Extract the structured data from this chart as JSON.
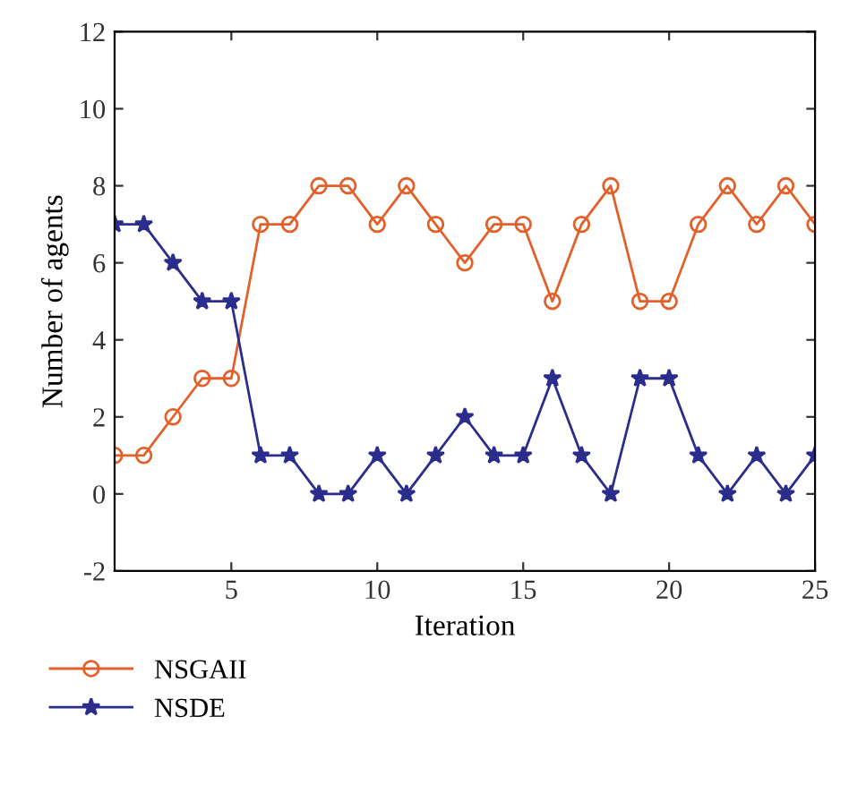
{
  "chart_data": {
    "type": "line",
    "xlabel": "Iteration",
    "ylabel": "Number of agents",
    "x": [
      1,
      2,
      3,
      4,
      5,
      6,
      7,
      8,
      9,
      10,
      11,
      12,
      13,
      14,
      15,
      16,
      17,
      18,
      19,
      20,
      21,
      22,
      23,
      24,
      25
    ],
    "series": [
      {
        "name": "NSGAII",
        "color": "#e2612a",
        "marker": "circle",
        "values": [
          1,
          1,
          2,
          3,
          3,
          7,
          7,
          8,
          8,
          7,
          8,
          7,
          6,
          7,
          7,
          5,
          7,
          8,
          5,
          5,
          7,
          8,
          7,
          8,
          7
        ]
      },
      {
        "name": "NSDE",
        "color": "#2b2d8c",
        "marker": "star",
        "values": [
          7,
          7,
          6,
          5,
          5,
          1,
          1,
          0,
          0,
          1,
          0,
          1,
          2,
          1,
          1,
          3,
          1,
          0,
          3,
          3,
          1,
          0,
          1,
          0,
          1
        ]
      }
    ],
    "xlim": [
      1,
      25
    ],
    "xticks": [
      5,
      10,
      15,
      20,
      25
    ],
    "ylim": [
      -2,
      12
    ],
    "yticks": [
      -2,
      0,
      2,
      4,
      6,
      8,
      10,
      12
    ],
    "grid": false,
    "legend": "bottom",
    "line_style": "solid"
  }
}
